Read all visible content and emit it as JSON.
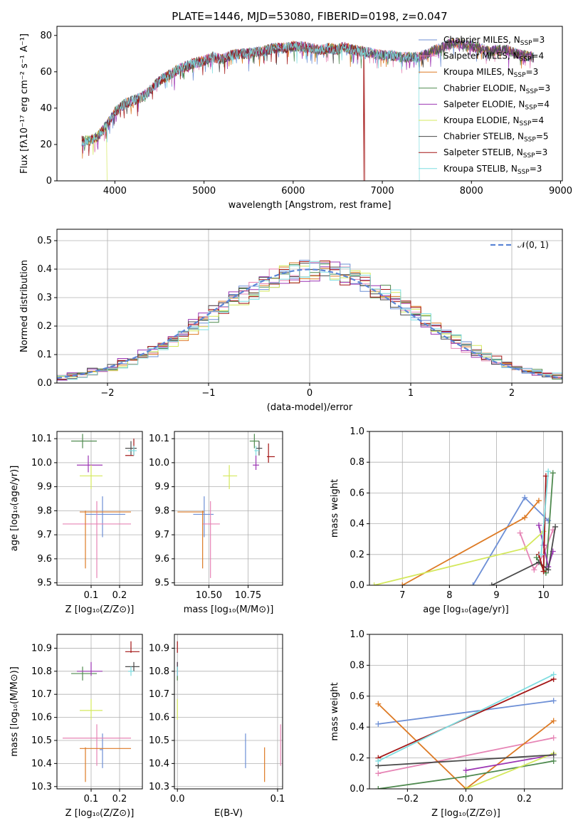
{
  "series_legend": [
    {
      "label": "Chabrier MILES, N",
      "sub": "SSP",
      "tail": "=3",
      "color": "#6d8fd6"
    },
    {
      "label": "Salpeter MILES, N",
      "sub": "SSP",
      "tail": "=4",
      "color": "#e684b5"
    },
    {
      "label": "Kroupa MILES, N",
      "sub": "SSP",
      "tail": "=3",
      "color": "#dd7a24"
    },
    {
      "label": "Chabrier ELODIE, N",
      "sub": "SSP",
      "tail": "=3",
      "color": "#4f8a4f"
    },
    {
      "label": "Salpeter ELODIE, N",
      "sub": "SSP",
      "tail": "=4",
      "color": "#9b34b3"
    },
    {
      "label": "Kroupa ELODIE, N",
      "sub": "SSP",
      "tail": "=4",
      "color": "#d4e85c"
    },
    {
      "label": "Chabrier STELIB, N",
      "sub": "SSP",
      "tail": "=5",
      "color": "#4a4a4a"
    },
    {
      "label": "Salpeter STELIB, N",
      "sub": "SSP",
      "tail": "=3",
      "color": "#a31515"
    },
    {
      "label": "Kroupa STELIB, N",
      "sub": "SSP",
      "tail": "=3",
      "color": "#7fdde0"
    }
  ],
  "chart_data": [
    {
      "id": "spectrum",
      "type": "line",
      "title": "PLATE=1446, MJD=53080, FIBERID=0198, z=0.047",
      "xlabel": "wavelength [Angstrom, rest frame]",
      "ylabel": "Flux [fλ10⁻¹⁷ erg cm⁻² s⁻¹ A⁻¹]",
      "xlim": [
        3350,
        9020
      ],
      "ylim": [
        0,
        85
      ],
      "xticks": [
        "4000",
        "5000",
        "6000",
        "7000",
        "8000",
        "9000"
      ],
      "yticks": [
        "0",
        "20",
        "40",
        "60",
        "80"
      ],
      "continuum": [
        [
          3630,
          22
        ],
        [
          3700,
          22
        ],
        [
          3800,
          24
        ],
        [
          3900,
          30
        ],
        [
          4000,
          38
        ],
        [
          4100,
          42
        ],
        [
          4200,
          44
        ],
        [
          4300,
          46
        ],
        [
          4400,
          50
        ],
        [
          4500,
          55
        ],
        [
          4600,
          58
        ],
        [
          4700,
          61
        ],
        [
          4800,
          63
        ],
        [
          4900,
          65
        ],
        [
          5000,
          66
        ],
        [
          5100,
          68
        ],
        [
          5200,
          67
        ],
        [
          5300,
          69
        ],
        [
          5400,
          70
        ],
        [
          5500,
          70
        ],
        [
          5600,
          71
        ],
        [
          5700,
          72
        ],
        [
          5800,
          73
        ],
        [
          5900,
          73
        ],
        [
          6000,
          74
        ],
        [
          6100,
          74
        ],
        [
          6200,
          73
        ],
        [
          6300,
          72
        ],
        [
          6400,
          73
        ],
        [
          6500,
          72
        ],
        [
          6563,
          74
        ],
        [
          6600,
          73
        ],
        [
          6700,
          72
        ],
        [
          6800,
          71
        ],
        [
          6900,
          70
        ],
        [
          7000,
          69
        ],
        [
          7100,
          69
        ],
        [
          7200,
          68
        ],
        [
          7300,
          68
        ],
        [
          7400,
          68
        ],
        [
          7500,
          70
        ],
        [
          7600,
          72
        ],
        [
          7700,
          74
        ],
        [
          7800,
          76
        ],
        [
          7900,
          75
        ],
        [
          8000,
          74
        ],
        [
          8100,
          73
        ],
        [
          8200,
          71
        ],
        [
          8300,
          72
        ],
        [
          8400,
          72
        ],
        [
          8500,
          70
        ],
        [
          8600,
          69
        ],
        [
          8700,
          68
        ]
      ]
    },
    {
      "id": "residuals",
      "type": "line",
      "xlabel": "(data-model)/error",
      "ylabel": "Normed distribution",
      "xlim": [
        -2.5,
        2.5
      ],
      "ylim": [
        0,
        0.54
      ],
      "xticks": [
        "−2",
        "−1",
        "0",
        "1",
        "2"
      ],
      "yticks": [
        "0.0",
        "0.1",
        "0.2",
        "0.3",
        "0.4",
        "0.5"
      ],
      "legend": "𝒩(0, 1)",
      "gaussian": {
        "mean": 0,
        "sigma": 1
      }
    },
    {
      "id": "age_vs_Z",
      "type": "scatter",
      "xlabel": "Z [log₁₀(Z/Z⊙)]",
      "ylabel": "age  [log₁₀(age/yr)]",
      "xlim": [
        -0.02,
        0.28
      ],
      "ylim": [
        9.49,
        10.13
      ],
      "xticks": [
        "0.1",
        "0.2"
      ],
      "yticks": [
        "9.5",
        "9.6",
        "9.7",
        "9.8",
        "9.9",
        "10.0",
        "10.1"
      ],
      "points": [
        {
          "x": 0.14,
          "y": 9.785,
          "ex": [
            0.08,
            0.22
          ],
          "ey": [
            9.69,
            9.86
          ]
        },
        {
          "x": 0.12,
          "y": 9.745,
          "ex": [
            0.0,
            0.24
          ],
          "ey": [
            9.52,
            9.84
          ]
        },
        {
          "x": 0.08,
          "y": 9.795,
          "ex": [
            0.06,
            0.24
          ],
          "ey": [
            9.56,
            9.8
          ]
        },
        {
          "x": 0.07,
          "y": 10.09,
          "ex": [
            0.03,
            0.12
          ],
          "ey": [
            10.06,
            10.12
          ]
        },
        {
          "x": 0.09,
          "y": 9.99,
          "ex": [
            0.05,
            0.14
          ],
          "ey": [
            9.96,
            10.03
          ]
        },
        {
          "x": 0.1,
          "y": 9.945,
          "ex": [
            0.06,
            0.14
          ],
          "ey": [
            9.89,
            9.99
          ]
        },
        {
          "x": 0.24,
          "y": 10.06,
          "ex": [
            0.22,
            0.26
          ],
          "ey": [
            10.03,
            10.09
          ]
        },
        {
          "x": 0.25,
          "y": 10.03,
          "ex": [
            0.22,
            0.25
          ],
          "ey": [
            10.03,
            10.1
          ]
        },
        {
          "x": 0.25,
          "y": 10.05,
          "ex": [
            0.23,
            0.26
          ],
          "ey": [
            10.03,
            10.07
          ]
        }
      ]
    },
    {
      "id": "age_vs_mass",
      "type": "scatter",
      "xlabel": "mass [log₁₀(M/M⊙)]",
      "ylabel": "",
      "xlim": [
        10.28,
        10.97
      ],
      "ylim": [
        9.49,
        10.13
      ],
      "xticks": [
        "10.50",
        "10.75"
      ],
      "yticks": [
        "9.5",
        "9.6",
        "9.7",
        "9.8",
        "9.9",
        "10.0",
        "10.1"
      ],
      "points": [
        {
          "x": 10.47,
          "y": 9.785,
          "ex": [
            10.4,
            10.53
          ],
          "ey": [
            9.69,
            9.86
          ]
        },
        {
          "x": 10.51,
          "y": 9.745,
          "ex": [
            10.46,
            10.57
          ],
          "ey": [
            9.52,
            9.84
          ]
        },
        {
          "x": 10.46,
          "y": 9.795,
          "ex": [
            10.3,
            10.47
          ],
          "ey": [
            9.56,
            9.8
          ]
        },
        {
          "x": 10.79,
          "y": 10.09,
          "ex": [
            10.76,
            10.82
          ],
          "ey": [
            10.06,
            10.12
          ]
        },
        {
          "x": 10.8,
          "y": 9.99,
          "ex": [
            10.78,
            10.82
          ],
          "ey": [
            9.97,
            10.03
          ]
        },
        {
          "x": 10.63,
          "y": 9.945,
          "ex": [
            10.59,
            10.68
          ],
          "ey": [
            9.89,
            9.99
          ]
        },
        {
          "x": 10.82,
          "y": 10.06,
          "ex": [
            10.8,
            10.84
          ],
          "ey": [
            10.03,
            10.09
          ]
        },
        {
          "x": 10.88,
          "y": 10.025,
          "ex": [
            10.87,
            10.92
          ],
          "ey": [
            10.0,
            10.08
          ]
        },
        {
          "x": 10.8,
          "y": 10.05,
          "ex": [
            10.79,
            10.82
          ],
          "ey": [
            10.03,
            10.07
          ]
        }
      ]
    },
    {
      "id": "weight_vs_age",
      "type": "line",
      "xlabel": "age  [log₁₀(age/yr)]",
      "ylabel": "mass weight",
      "xlim": [
        6.3,
        10.4
      ],
      "ylim": [
        0,
        1
      ],
      "xticks": [
        "7",
        "8",
        "9",
        "10"
      ],
      "yticks": [
        "0.0",
        "0.2",
        "0.4",
        "0.6",
        "0.8",
        "1.0"
      ],
      "series": [
        {
          "x": [
            8.5,
            9.6,
            10.1
          ],
          "y": [
            0,
            0.57,
            0.42
          ]
        },
        {
          "x": [
            9.5,
            9.8,
            10.0,
            10.2
          ],
          "y": [
            0.34,
            0.1,
            0.2,
            0.36
          ]
        },
        {
          "x": [
            7.0,
            9.6,
            9.9
          ],
          "y": [
            0,
            0.44,
            0.55
          ]
        },
        {
          "x": [
            9.85,
            10.05,
            10.2
          ],
          "y": [
            0.18,
            0.08,
            0.73
          ]
        },
        {
          "x": [
            9.9,
            10.0,
            10.1,
            10.2
          ],
          "y": [
            0.39,
            0.26,
            0.12,
            0.22
          ]
        },
        {
          "x": [
            6.4,
            9.6,
            10.0
          ],
          "y": [
            0,
            0.24,
            0.35
          ]
        },
        {
          "x": [
            8.9,
            9.9,
            10.1,
            10.25
          ],
          "y": [
            0,
            0.15,
            0.1,
            0.38
          ]
        },
        {
          "x": [
            9.9,
            10.0,
            10.05
          ],
          "y": [
            0.2,
            0.09,
            0.71
          ]
        },
        {
          "x": [
            9.95,
            10.1
          ],
          "y": [
            0.2,
            0.74
          ]
        }
      ]
    },
    {
      "id": "mass_vs_Z",
      "type": "scatter",
      "xlabel": "Z [log₁₀(Z/Z⊙)]",
      "ylabel": "mass [log₁₀(M/M⊙)]",
      "xlim": [
        -0.02,
        0.28
      ],
      "ylim": [
        10.29,
        10.96
      ],
      "xticks": [
        "0.1",
        "0.2"
      ],
      "yticks": [
        "10.3",
        "10.4",
        "10.5",
        "10.6",
        "10.7",
        "10.8",
        "10.9"
      ],
      "points": [
        {
          "x": 0.14,
          "y": 10.46,
          "ex": [
            0.13,
            0.14
          ],
          "ey": [
            10.38,
            10.53
          ]
        },
        {
          "x": 0.12,
          "y": 10.51,
          "ex": [
            0.0,
            0.24
          ],
          "ey": [
            10.39,
            10.57
          ]
        },
        {
          "x": 0.08,
          "y": 10.465,
          "ex": [
            0.06,
            0.24
          ],
          "ey": [
            10.32,
            10.47
          ]
        },
        {
          "x": 0.07,
          "y": 10.79,
          "ex": [
            0.03,
            0.12
          ],
          "ey": [
            10.76,
            10.82
          ]
        },
        {
          "x": 0.1,
          "y": 10.8,
          "ex": [
            0.05,
            0.14
          ],
          "ey": [
            10.78,
            10.84
          ]
        },
        {
          "x": 0.1,
          "y": 10.63,
          "ex": [
            0.06,
            0.14
          ],
          "ey": [
            10.59,
            10.68
          ]
        },
        {
          "x": 0.25,
          "y": 10.82,
          "ex": [
            0.22,
            0.27
          ],
          "ey": [
            10.8,
            10.84
          ]
        },
        {
          "x": 0.24,
          "y": 10.885,
          "ex": [
            0.22,
            0.27
          ],
          "ey": [
            10.88,
            10.93
          ]
        },
        {
          "x": 0.24,
          "y": 10.8,
          "ex": [
            0.23,
            0.25
          ],
          "ey": [
            10.78,
            10.82
          ]
        }
      ]
    },
    {
      "id": "mass_vs_ebv",
      "type": "scatter",
      "xlabel": "E(B-V)",
      "ylabel": "",
      "xlim": [
        -0.003,
        0.105
      ],
      "ylim": [
        10.29,
        10.96
      ],
      "xticks": [
        "0.0",
        "0.1"
      ],
      "yticks": [
        "10.3",
        "10.4",
        "10.5",
        "10.6",
        "10.7",
        "10.8",
        "10.9"
      ],
      "points": [
        {
          "x": 0.068,
          "y": 10.46,
          "ey": [
            10.38,
            10.53
          ]
        },
        {
          "x": 0.103,
          "y": 10.51,
          "ey": [
            10.39,
            10.57
          ]
        },
        {
          "x": 0.087,
          "y": 10.46,
          "ey": [
            10.32,
            10.47
          ]
        },
        {
          "x": 0.0,
          "y": 10.79,
          "ey": [
            10.76,
            10.82
          ]
        },
        {
          "x": 0.0,
          "y": 10.8,
          "ey": [
            10.78,
            10.84
          ]
        },
        {
          "x": 0.0,
          "y": 10.63,
          "ey": [
            10.59,
            10.68
          ]
        },
        {
          "x": 0.0,
          "y": 10.82,
          "ey": [
            10.8,
            10.84
          ]
        },
        {
          "x": 0.0,
          "y": 10.885,
          "ey": [
            10.88,
            10.93
          ]
        },
        {
          "x": 0.0,
          "y": 10.8,
          "ey": [
            10.78,
            10.82
          ]
        }
      ]
    },
    {
      "id": "weight_vs_Z",
      "type": "line",
      "xlabel": "Z [log₁₀(Z/Z⊙)]",
      "ylabel": "mass weight",
      "xlim": [
        -0.33,
        0.33
      ],
      "ylim": [
        0,
        1
      ],
      "xticks": [
        "−0.2",
        "0.0",
        "0.2"
      ],
      "yticks": [
        "0.0",
        "0.2",
        "0.4",
        "0.6",
        "0.8",
        "1.0"
      ],
      "series": [
        {
          "x": [
            -0.3,
            0.3
          ],
          "y": [
            0.42,
            0.57
          ]
        },
        {
          "x": [
            -0.3,
            0.3
          ],
          "y": [
            0.1,
            0.33
          ]
        },
        {
          "x": [
            -0.3,
            0.0,
            0.3
          ],
          "y": [
            0.55,
            0.0,
            0.44
          ]
        },
        {
          "x": [
            -0.3,
            0.0,
            0.3
          ],
          "y": [
            0.0,
            0.08,
            0.18
          ]
        },
        {
          "x": [
            0.0,
            0.3
          ],
          "y": [
            0.12,
            0.22
          ]
        },
        {
          "x": [
            0.0,
            0.3
          ],
          "y": [
            0.0,
            0.23
          ]
        },
        {
          "x": [
            -0.3,
            0.3
          ],
          "y": [
            0.15,
            0.22
          ]
        },
        {
          "x": [
            -0.3,
            0.3
          ],
          "y": [
            0.2,
            0.71
          ]
        },
        {
          "x": [
            -0.3,
            0.3
          ],
          "y": [
            0.18,
            0.74
          ]
        }
      ]
    }
  ]
}
